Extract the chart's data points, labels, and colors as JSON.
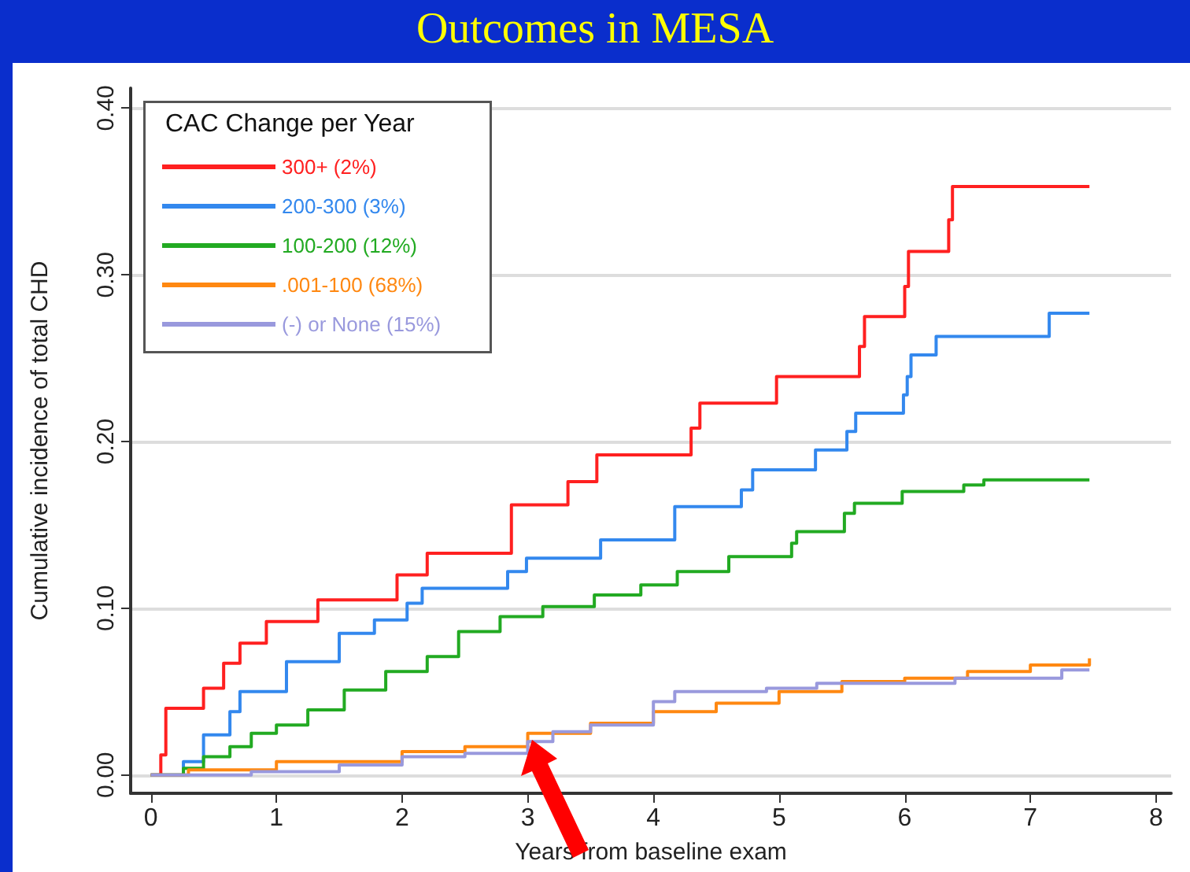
{
  "chart_data": {
    "type": "step",
    "title": "Outcomes in MESA",
    "xlabel": "Years from baseline exam",
    "ylabel": "Cumulative incidence of total CHD",
    "legend_title": "CAC Change per Year",
    "legend": "top left",
    "grid": "y",
    "marker": "none",
    "line_style": "solid",
    "xlim": [
      -0.16,
      8.12
    ],
    "xticks": [
      0,
      1,
      2,
      3,
      4,
      5,
      6,
      7,
      8
    ],
    "ylim": [
      -0.011,
      0.412
    ],
    "yticks": [
      {
        "value": 0,
        "label": "0.00"
      },
      {
        "value": 0.1,
        "label": "0.10"
      },
      {
        "value": 0.2,
        "label": "0.20"
      },
      {
        "value": 0.3,
        "label": "0.30"
      },
      {
        "value": 0.4,
        "label": "0.40"
      }
    ],
    "series": [
      {
        "name": "300+ (2%)",
        "color": "#ff2020",
        "x": [
          0,
          0.08,
          0.12,
          0.42,
          0.58,
          0.71,
          0.92,
          1.33,
          1.96,
          2.2,
          2.87,
          3.32,
          3.55,
          4.3,
          4.37,
          4.98,
          5.64,
          5.68,
          6.0,
          6.03,
          6.35,
          6.38,
          7.47
        ],
        "values": [
          0,
          0.012,
          0.04,
          0.052,
          0.067,
          0.079,
          0.092,
          0.105,
          0.12,
          0.133,
          0.162,
          0.176,
          0.192,
          0.208,
          0.223,
          0.239,
          0.257,
          0.275,
          0.293,
          0.314,
          0.333,
          0.353,
          0.353
        ]
      },
      {
        "name": "200-300 (3%)",
        "color": "#3388ee",
        "x": [
          0,
          0.26,
          0.42,
          0.63,
          0.71,
          1.08,
          1.5,
          1.78,
          2.04,
          2.16,
          2.84,
          2.99,
          3.58,
          4.17,
          4.7,
          4.79,
          5.29,
          5.54,
          5.61,
          5.99,
          6.02,
          6.05,
          6.25,
          7.15,
          7.47
        ],
        "values": [
          0,
          0.008,
          0.024,
          0.038,
          0.05,
          0.068,
          0.085,
          0.093,
          0.103,
          0.112,
          0.122,
          0.13,
          0.141,
          0.161,
          0.171,
          0.183,
          0.195,
          0.206,
          0.217,
          0.228,
          0.239,
          0.252,
          0.263,
          0.277,
          0.277
        ]
      },
      {
        "name": "100-200 (12%)",
        "color": "#22aa22",
        "x": [
          0,
          0.26,
          0.42,
          0.63,
          0.8,
          1.0,
          1.25,
          1.54,
          1.87,
          2.2,
          2.45,
          2.78,
          3.12,
          3.53,
          3.9,
          4.19,
          4.6,
          5.1,
          5.14,
          5.52,
          5.6,
          5.98,
          6.47,
          6.63,
          7.47
        ],
        "values": [
          0,
          0.004,
          0.011,
          0.017,
          0.025,
          0.03,
          0.039,
          0.051,
          0.062,
          0.071,
          0.086,
          0.095,
          0.101,
          0.108,
          0.114,
          0.122,
          0.131,
          0.139,
          0.146,
          0.157,
          0.163,
          0.17,
          0.174,
          0.177,
          0.177
        ]
      },
      {
        "name": ".001-100 (68%)",
        "color": "#ff8811",
        "x": [
          0,
          0.3,
          1.0,
          2.0,
          2.5,
          3.0,
          3.5,
          4.0,
          4.5,
          5.0,
          5.5,
          6.0,
          6.5,
          7.0,
          7.47
        ],
        "values": [
          0,
          0.003,
          0.008,
          0.014,
          0.017,
          0.025,
          0.031,
          0.038,
          0.043,
          0.05,
          0.056,
          0.058,
          0.062,
          0.066,
          0.07
        ]
      },
      {
        "name": "(-) or None (15%)",
        "color": "#9999dd",
        "x": [
          0,
          0.3,
          0.8,
          1.5,
          2.0,
          2.5,
          3.0,
          3.2,
          3.5,
          4.0,
          4.17,
          4.9,
          5.3,
          6.4,
          7.25,
          7.47
        ],
        "values": [
          0,
          0,
          0.002,
          0.006,
          0.011,
          0.013,
          0.02,
          0.026,
          0.03,
          0.044,
          0.05,
          0.052,
          0.055,
          0.058,
          0.063,
          0.063
        ]
      }
    ]
  }
}
